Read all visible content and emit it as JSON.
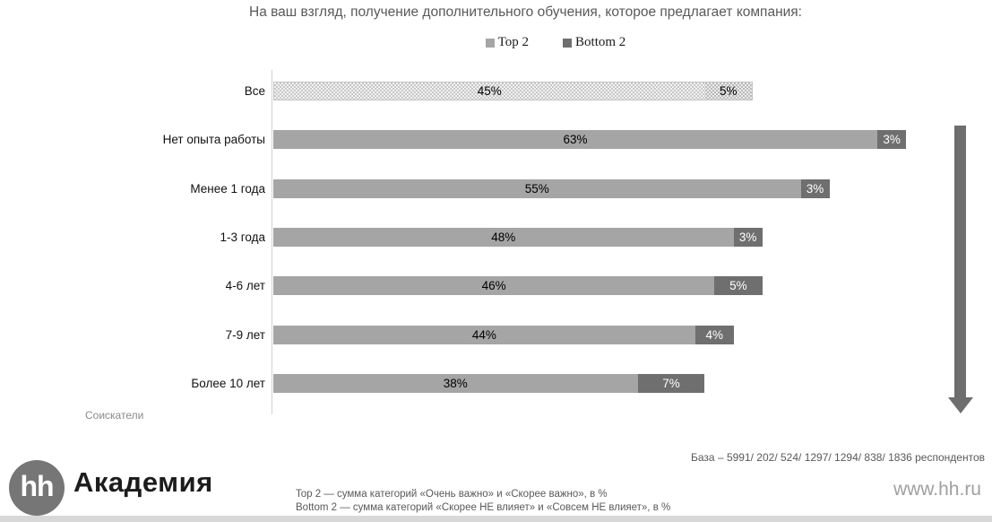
{
  "title": "На ваш взгляд, получение дополнительного обучения, которое предлагает компания:",
  "legend": [
    {
      "label": "Top 2",
      "color": "#a5a5a5"
    },
    {
      "label": "Bottom 2",
      "color": "#6f6f6f"
    }
  ],
  "chart_data": {
    "type": "bar",
    "orientation": "horizontal",
    "stacked": true,
    "categories": [
      "Все",
      "Нет опыта работы",
      "Менее 1 года",
      "1-3 года",
      "4-6 лет",
      "7-9 лет",
      "Более 10 лет"
    ],
    "series": [
      {
        "name": "Top 2",
        "color": "#a5a5a5",
        "values": [
          45,
          63,
          55,
          48,
          46,
          44,
          38
        ]
      },
      {
        "name": "Bottom 2",
        "color": "#6f6f6f",
        "values": [
          5,
          3,
          3,
          3,
          5,
          4,
          7
        ]
      }
    ],
    "value_suffix": "%",
    "first_row_hatched": true,
    "xlim": [
      0,
      66
    ],
    "grid": false,
    "legend_position": "top-center",
    "trend_annotation": "down-arrow-right-side"
  },
  "axis_footer": "Соискатели",
  "base_note": "База –  5991/ 202/ 524/ 1297/ 1294/ 838/ 1836 респондентов",
  "footer": {
    "logo_text": "hh",
    "brand": "Академия",
    "note_top2": "Top 2 — сумма категорий «Очень важно» и «Скорее важно», в %",
    "note_bottom2": "Bottom 2 — сумма категорий «Скорее НЕ влияет» и «Совсем НЕ влияет», в %",
    "site": "www.hh.ru"
  },
  "colors": {
    "top2": "#a5a5a5",
    "bottom2": "#6f6f6f",
    "title_text": "#595959",
    "arrow": "#6e6e6e",
    "logo_circle": "#767676",
    "bottom_strip": "#d8d8d8"
  }
}
